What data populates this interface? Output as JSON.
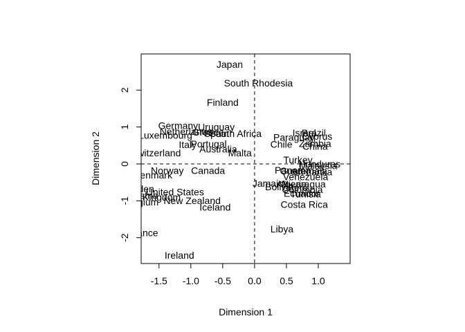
{
  "chart_data": {
    "type": "scatter",
    "title": "",
    "xlabel": "Dimension  1",
    "ylabel": "Dimension  2",
    "xlim": [
      -1.78,
      1.5
    ],
    "ylim": [
      -2.7,
      2.98
    ],
    "xticks": [
      -1.5,
      -1.0,
      -0.5,
      0.0,
      0.5,
      1.0
    ],
    "xtick_labels": [
      "-1.5",
      "-1.0",
      "-0.5",
      "0.0",
      "0.5",
      "1.0"
    ],
    "yticks": [
      -2,
      -1,
      0,
      1,
      2
    ],
    "ytick_labels": [
      "-2",
      "-1",
      "0",
      "1",
      "2"
    ],
    "reference_lines": {
      "x": 0,
      "y": 0,
      "style": "dashed"
    },
    "grid": false,
    "points": [
      {
        "label": "Japan",
        "x": -0.39,
        "y": 2.7
      },
      {
        "label": "South Rhodesia",
        "x": 0.06,
        "y": 2.19
      },
      {
        "label": "Finland",
        "x": -0.5,
        "y": 1.67
      },
      {
        "label": "Germany",
        "x": -1.2,
        "y": 1.04
      },
      {
        "label": "Uruguay",
        "x": -0.6,
        "y": 1.0
      },
      {
        "label": "Netherlands",
        "x": -1.08,
        "y": 0.88
      },
      {
        "label": "Greece",
        "x": -0.73,
        "y": 0.86
      },
      {
        "label": "Spain",
        "x": -0.6,
        "y": 0.82
      },
      {
        "label": "South Africa",
        "x": -0.3,
        "y": 0.82
      },
      {
        "label": "Luxembourg",
        "x": -1.4,
        "y": 0.78
      },
      {
        "label": "Italy",
        "x": -1.05,
        "y": 0.52
      },
      {
        "label": "Portugal",
        "x": -0.72,
        "y": 0.54
      },
      {
        "label": "Australia",
        "x": -0.57,
        "y": 0.4
      },
      {
        "label": "Malta",
        "x": -0.23,
        "y": 0.3
      },
      {
        "label": "Switzerland",
        "x": -1.55,
        "y": 0.3
      },
      {
        "label": "Israel",
        "x": 0.78,
        "y": 0.84
      },
      {
        "label": "Brazil",
        "x": 0.93,
        "y": 0.84
      },
      {
        "label": "Paraguay",
        "x": 0.62,
        "y": 0.72
      },
      {
        "label": "Cyprus",
        "x": 0.98,
        "y": 0.75
      },
      {
        "label": "Chile",
        "x": 0.42,
        "y": 0.53
      },
      {
        "label": "Zambia",
        "x": 0.95,
        "y": 0.55
      },
      {
        "label": "China",
        "x": 0.95,
        "y": 0.48
      },
      {
        "label": "Turkey",
        "x": 0.68,
        "y": 0.11
      },
      {
        "label": "Honduras",
        "x": 1.02,
        "y": 0.0
      },
      {
        "label": "Malaysia",
        "x": 1.0,
        "y": -0.05
      },
      {
        "label": "Panama",
        "x": 0.6,
        "y": -0.17
      },
      {
        "label": "Guatemala",
        "x": 0.77,
        "y": -0.19
      },
      {
        "label": "Sri Lanka",
        "x": 0.9,
        "y": -0.22
      },
      {
        "label": "Venezuela",
        "x": 0.8,
        "y": -0.35
      },
      {
        "label": "Jamaica",
        "x": 0.25,
        "y": -0.53
      },
      {
        "label": "Algeria",
        "x": 0.58,
        "y": -0.55
      },
      {
        "label": "Nicaragua",
        "x": 0.77,
        "y": -0.55
      },
      {
        "label": "Bolivia",
        "x": 0.39,
        "y": -0.62
      },
      {
        "label": "Peru",
        "x": 0.68,
        "y": -0.64
      },
      {
        "label": "Colombia",
        "x": 0.75,
        "y": -0.7
      },
      {
        "label": "Ecuador",
        "x": 0.74,
        "y": -0.8
      },
      {
        "label": "Tunisia",
        "x": 0.8,
        "y": -0.82
      },
      {
        "label": "Costa Rica",
        "x": 0.78,
        "y": -1.1
      },
      {
        "label": "Norway",
        "x": -1.37,
        "y": -0.18
      },
      {
        "label": "Canada",
        "x": -0.73,
        "y": -0.18
      },
      {
        "label": "Denmark",
        "x": -1.6,
        "y": -0.3
      },
      {
        "label": "Sweden",
        "x": -1.85,
        "y": -0.68
      },
      {
        "label": "United States",
        "x": -1.25,
        "y": -0.76
      },
      {
        "label": "Austria",
        "x": -1.75,
        "y": -0.86
      },
      {
        "label": "United Kingdom",
        "x": -1.7,
        "y": -0.9
      },
      {
        "label": "New Zealand",
        "x": -0.98,
        "y": -1.0
      },
      {
        "label": "Belgium",
        "x": -1.78,
        "y": -1.03
      },
      {
        "label": "Iceland",
        "x": -0.62,
        "y": -1.17
      },
      {
        "label": "Libya",
        "x": 0.43,
        "y": -1.76
      },
      {
        "label": "France",
        "x": -1.75,
        "y": -1.87
      },
      {
        "label": "Ireland",
        "x": -1.18,
        "y": -2.48
      }
    ]
  }
}
